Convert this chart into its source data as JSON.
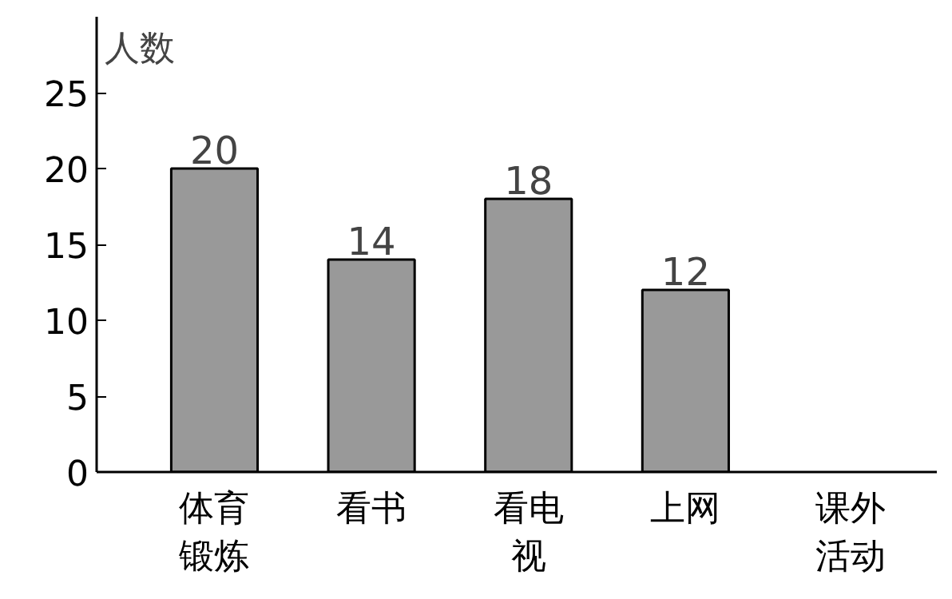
{
  "chart_data": {
    "type": "bar",
    "categories": [
      "体育锻炼",
      "看书",
      "看电视",
      "上网"
    ],
    "values": [
      20,
      14,
      18,
      12
    ],
    "color": "#999999",
    "ylabel": "人数",
    "xlabel": "课外活动",
    "ylim": [
      0,
      30
    ],
    "yticks": [
      0,
      5,
      10,
      15,
      20,
      25
    ],
    "data_labels": true,
    "grid": false
  }
}
